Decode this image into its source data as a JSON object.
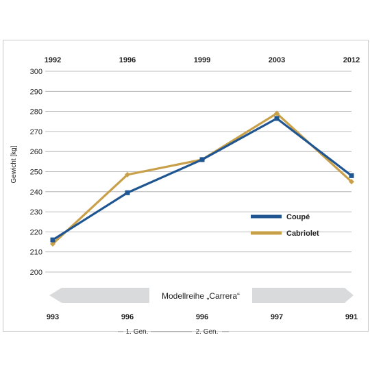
{
  "chart_data": {
    "type": "line",
    "top_x_labels": [
      "1992",
      "1996",
      "1999",
      "2003",
      "2012"
    ],
    "bottom_x_labels": [
      "993",
      "996",
      "996",
      "997",
      "991"
    ],
    "ylabel": "Gewicht [kg]",
    "ylim": [
      200,
      300
    ],
    "yticks": [
      200,
      210,
      220,
      230,
      240,
      250,
      260,
      270,
      280,
      290,
      300
    ],
    "grid": true,
    "legend_position": "lower-right",
    "series": [
      {
        "name": "Coupé",
        "color": "#1f5591",
        "marker": "square",
        "values": [
          216,
          239.5,
          256,
          276.5,
          248
        ]
      },
      {
        "name": "Cabriolet",
        "color": "#c9a04a",
        "marker": "diamond",
        "values": [
          214,
          248.5,
          256,
          279,
          245
        ]
      }
    ],
    "band_label": "Modellreihe „Carrera“",
    "generations": [
      "1. Gen.",
      "2. Gen."
    ]
  }
}
